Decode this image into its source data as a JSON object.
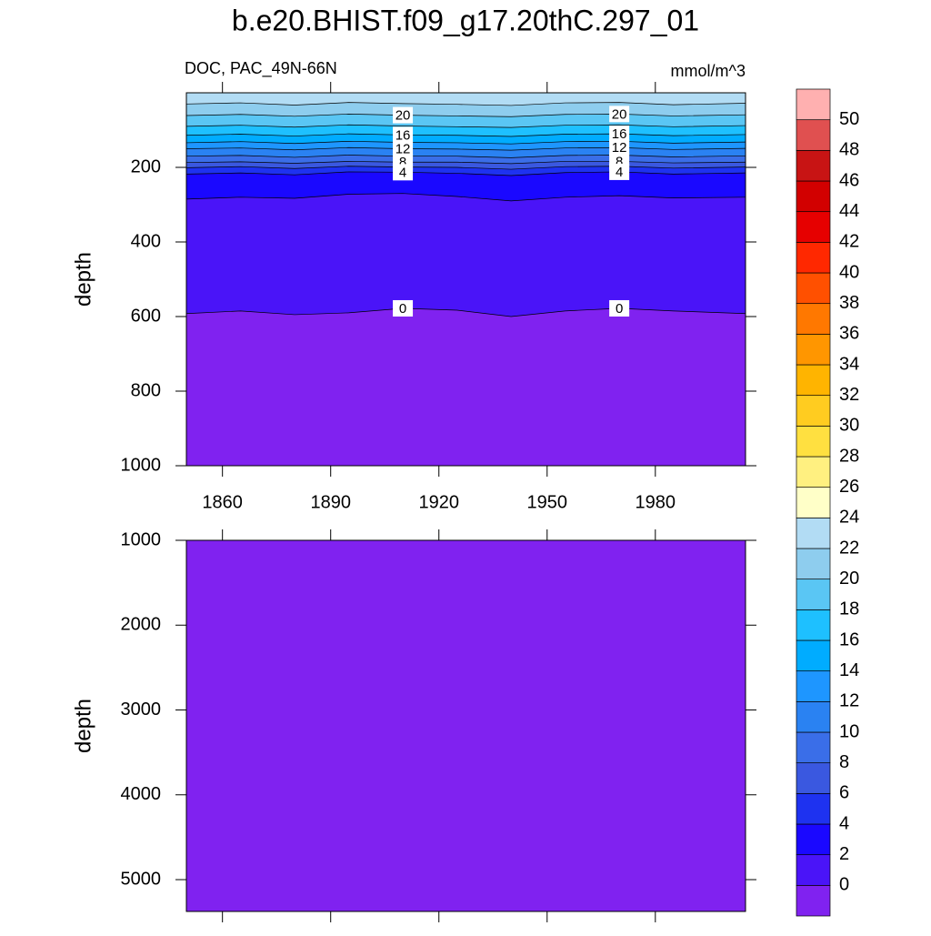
{
  "chart_data": [
    {
      "type": "contour",
      "title": "b.e20.BHIST.f09_g17.20thC.297_01",
      "subtitle": "DOC, PAC_49N-66N",
      "units": "mmol/m^3",
      "y_label": "depth",
      "x": [
        1850,
        1865,
        1880,
        1895,
        1910,
        1925,
        1940,
        1955,
        1970,
        1985,
        2005
      ],
      "xlim": [
        1850,
        2005
      ],
      "xticks": [
        1860,
        1890,
        1920,
        1950,
        1980
      ],
      "ylim": [
        0,
        1000
      ],
      "y_reversed": true,
      "yticks": [
        200,
        400,
        600,
        800,
        1000
      ],
      "contours": [
        {
          "level": 22,
          "depth": [
            30,
            27,
            33,
            26,
            29,
            31,
            34,
            27,
            26,
            32,
            28
          ]
        },
        {
          "level": 20,
          "depth": [
            61,
            58,
            63,
            57,
            60,
            62,
            64,
            58,
            57,
            62,
            59
          ]
        },
        {
          "level": 18,
          "depth": [
            90,
            87,
            92,
            86,
            89,
            91,
            93,
            87,
            86,
            91,
            88
          ]
        },
        {
          "level": 16,
          "depth": [
            114,
            111,
            116,
            110,
            113,
            114,
            117,
            111,
            110,
            115,
            112
          ]
        },
        {
          "level": 14,
          "depth": [
            134,
            131,
            136,
            130,
            133,
            134,
            137,
            131,
            130,
            135,
            132
          ]
        },
        {
          "level": 12,
          "depth": [
            150,
            148,
            153,
            147,
            150,
            151,
            154,
            148,
            147,
            152,
            149
          ]
        },
        {
          "level": 10,
          "depth": [
            170,
            168,
            173,
            167,
            170,
            170,
            174,
            168,
            167,
            172,
            169
          ]
        },
        {
          "level": 8,
          "depth": [
            187,
            185,
            189,
            184,
            186,
            186,
            190,
            184,
            184,
            188,
            186
          ]
        },
        {
          "level": 6,
          "depth": [
            201,
            198,
            203,
            197,
            199,
            200,
            205,
            198,
            197,
            202,
            199
          ]
        },
        {
          "level": 4,
          "depth": [
            218,
            215,
            220,
            212,
            213,
            216,
            222,
            214,
            212,
            218,
            215
          ]
        },
        {
          "level": 2,
          "depth": [
            285,
            280,
            283,
            272,
            270,
            278,
            290,
            280,
            276,
            282,
            280
          ]
        },
        {
          "level": 0,
          "depth": [
            592,
            585,
            595,
            590,
            578,
            583,
            600,
            585,
            578,
            585,
            592
          ]
        }
      ],
      "colorbar": {
        "levels": [
          0,
          2,
          4,
          6,
          8,
          10,
          12,
          14,
          16,
          18,
          20,
          22,
          24,
          26,
          28,
          30,
          32,
          34,
          36,
          38,
          40,
          42,
          44,
          46,
          48,
          50
        ],
        "colors": [
          "#8022f0",
          "#4a14f8",
          "#1a08ff",
          "#1e32f0",
          "#3a58e0",
          "#3a6ee8",
          "#2a82f2",
          "#1e96ff",
          "#00acff",
          "#1ec0ff",
          "#5ac6f4",
          "#8ecdee",
          "#b2dcf4",
          "#ffffc8",
          "#fff080",
          "#ffe040",
          "#ffcc20",
          "#ffb400",
          "#ff9600",
          "#ff7800",
          "#ff5000",
          "#ff2800",
          "#e60000",
          "#d20000",
          "#c81414",
          "#e05050",
          "#ffb0b0"
        ]
      }
    },
    {
      "type": "contour",
      "y_label": "depth",
      "ylim": [
        1000,
        5375
      ],
      "y_reversed": true,
      "yticks": [
        1000,
        2000,
        3000,
        4000,
        5000
      ]
    }
  ]
}
